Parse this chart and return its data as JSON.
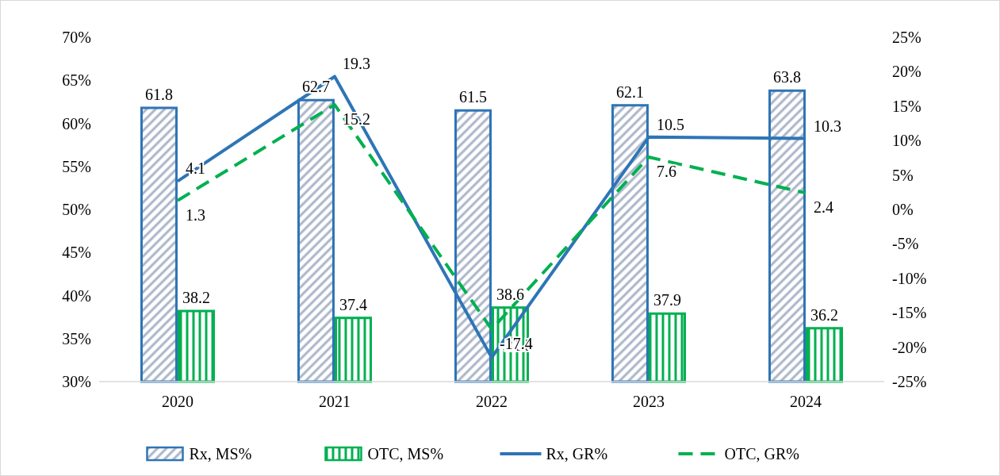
{
  "chart_data": {
    "type": "bar",
    "categories": [
      "2020",
      "2021",
      "2022",
      "2023",
      "2024"
    ],
    "series": [
      {
        "name": "Rx, MS%",
        "color": "#2e75b6",
        "values": [
          61.8,
          62.7,
          61.5,
          62.1,
          63.8
        ]
      },
      {
        "name": "OTC, MS%",
        "color": "#00b050",
        "values": [
          38.2,
          37.4,
          38.6,
          37.9,
          36.2
        ]
      },
      {
        "name": "Rx, GR%",
        "type": "line",
        "axis": "y2",
        "color": "#2e75b6",
        "line_style": "solid",
        "values": [
          4.1,
          19.3,
          -21.5,
          10.5,
          10.3
        ]
      },
      {
        "name": "OTC, GR%",
        "type": "line",
        "axis": "y2",
        "color": "#00b050",
        "line_style": "dashed",
        "values": [
          1.3,
          15.2,
          -17.4,
          7.6,
          2.4
        ]
      }
    ],
    "ylim": [
      30,
      70
    ],
    "yticks": [
      {
        "value": 30,
        "label": "30%"
      },
      {
        "value": 35,
        "label": "35%"
      },
      {
        "value": 40,
        "label": "40%"
      },
      {
        "value": 45,
        "label": "45%"
      },
      {
        "value": 50,
        "label": "50%"
      },
      {
        "value": 55,
        "label": "55%"
      },
      {
        "value": 60,
        "label": "60%"
      },
      {
        "value": 65,
        "label": "65%"
      },
      {
        "value": 70,
        "label": "70%"
      }
    ],
    "y2lim": [
      -25,
      25
    ],
    "y2ticks": [
      {
        "value": -25,
        "label": "-25%"
      },
      {
        "value": -20,
        "label": "-20%"
      },
      {
        "value": -15,
        "label": "-15%"
      },
      {
        "value": -10,
        "label": "-10%"
      },
      {
        "value": -5,
        "label": "-5%"
      },
      {
        "value": 0,
        "label": "0%"
      },
      {
        "value": 5,
        "label": "5%"
      },
      {
        "value": 10,
        "label": "10%"
      },
      {
        "value": 15,
        "label": "15%"
      },
      {
        "value": 20,
        "label": "20%"
      },
      {
        "value": 25,
        "label": "25%"
      }
    ],
    "data_labels": true,
    "legend": "bottom"
  }
}
